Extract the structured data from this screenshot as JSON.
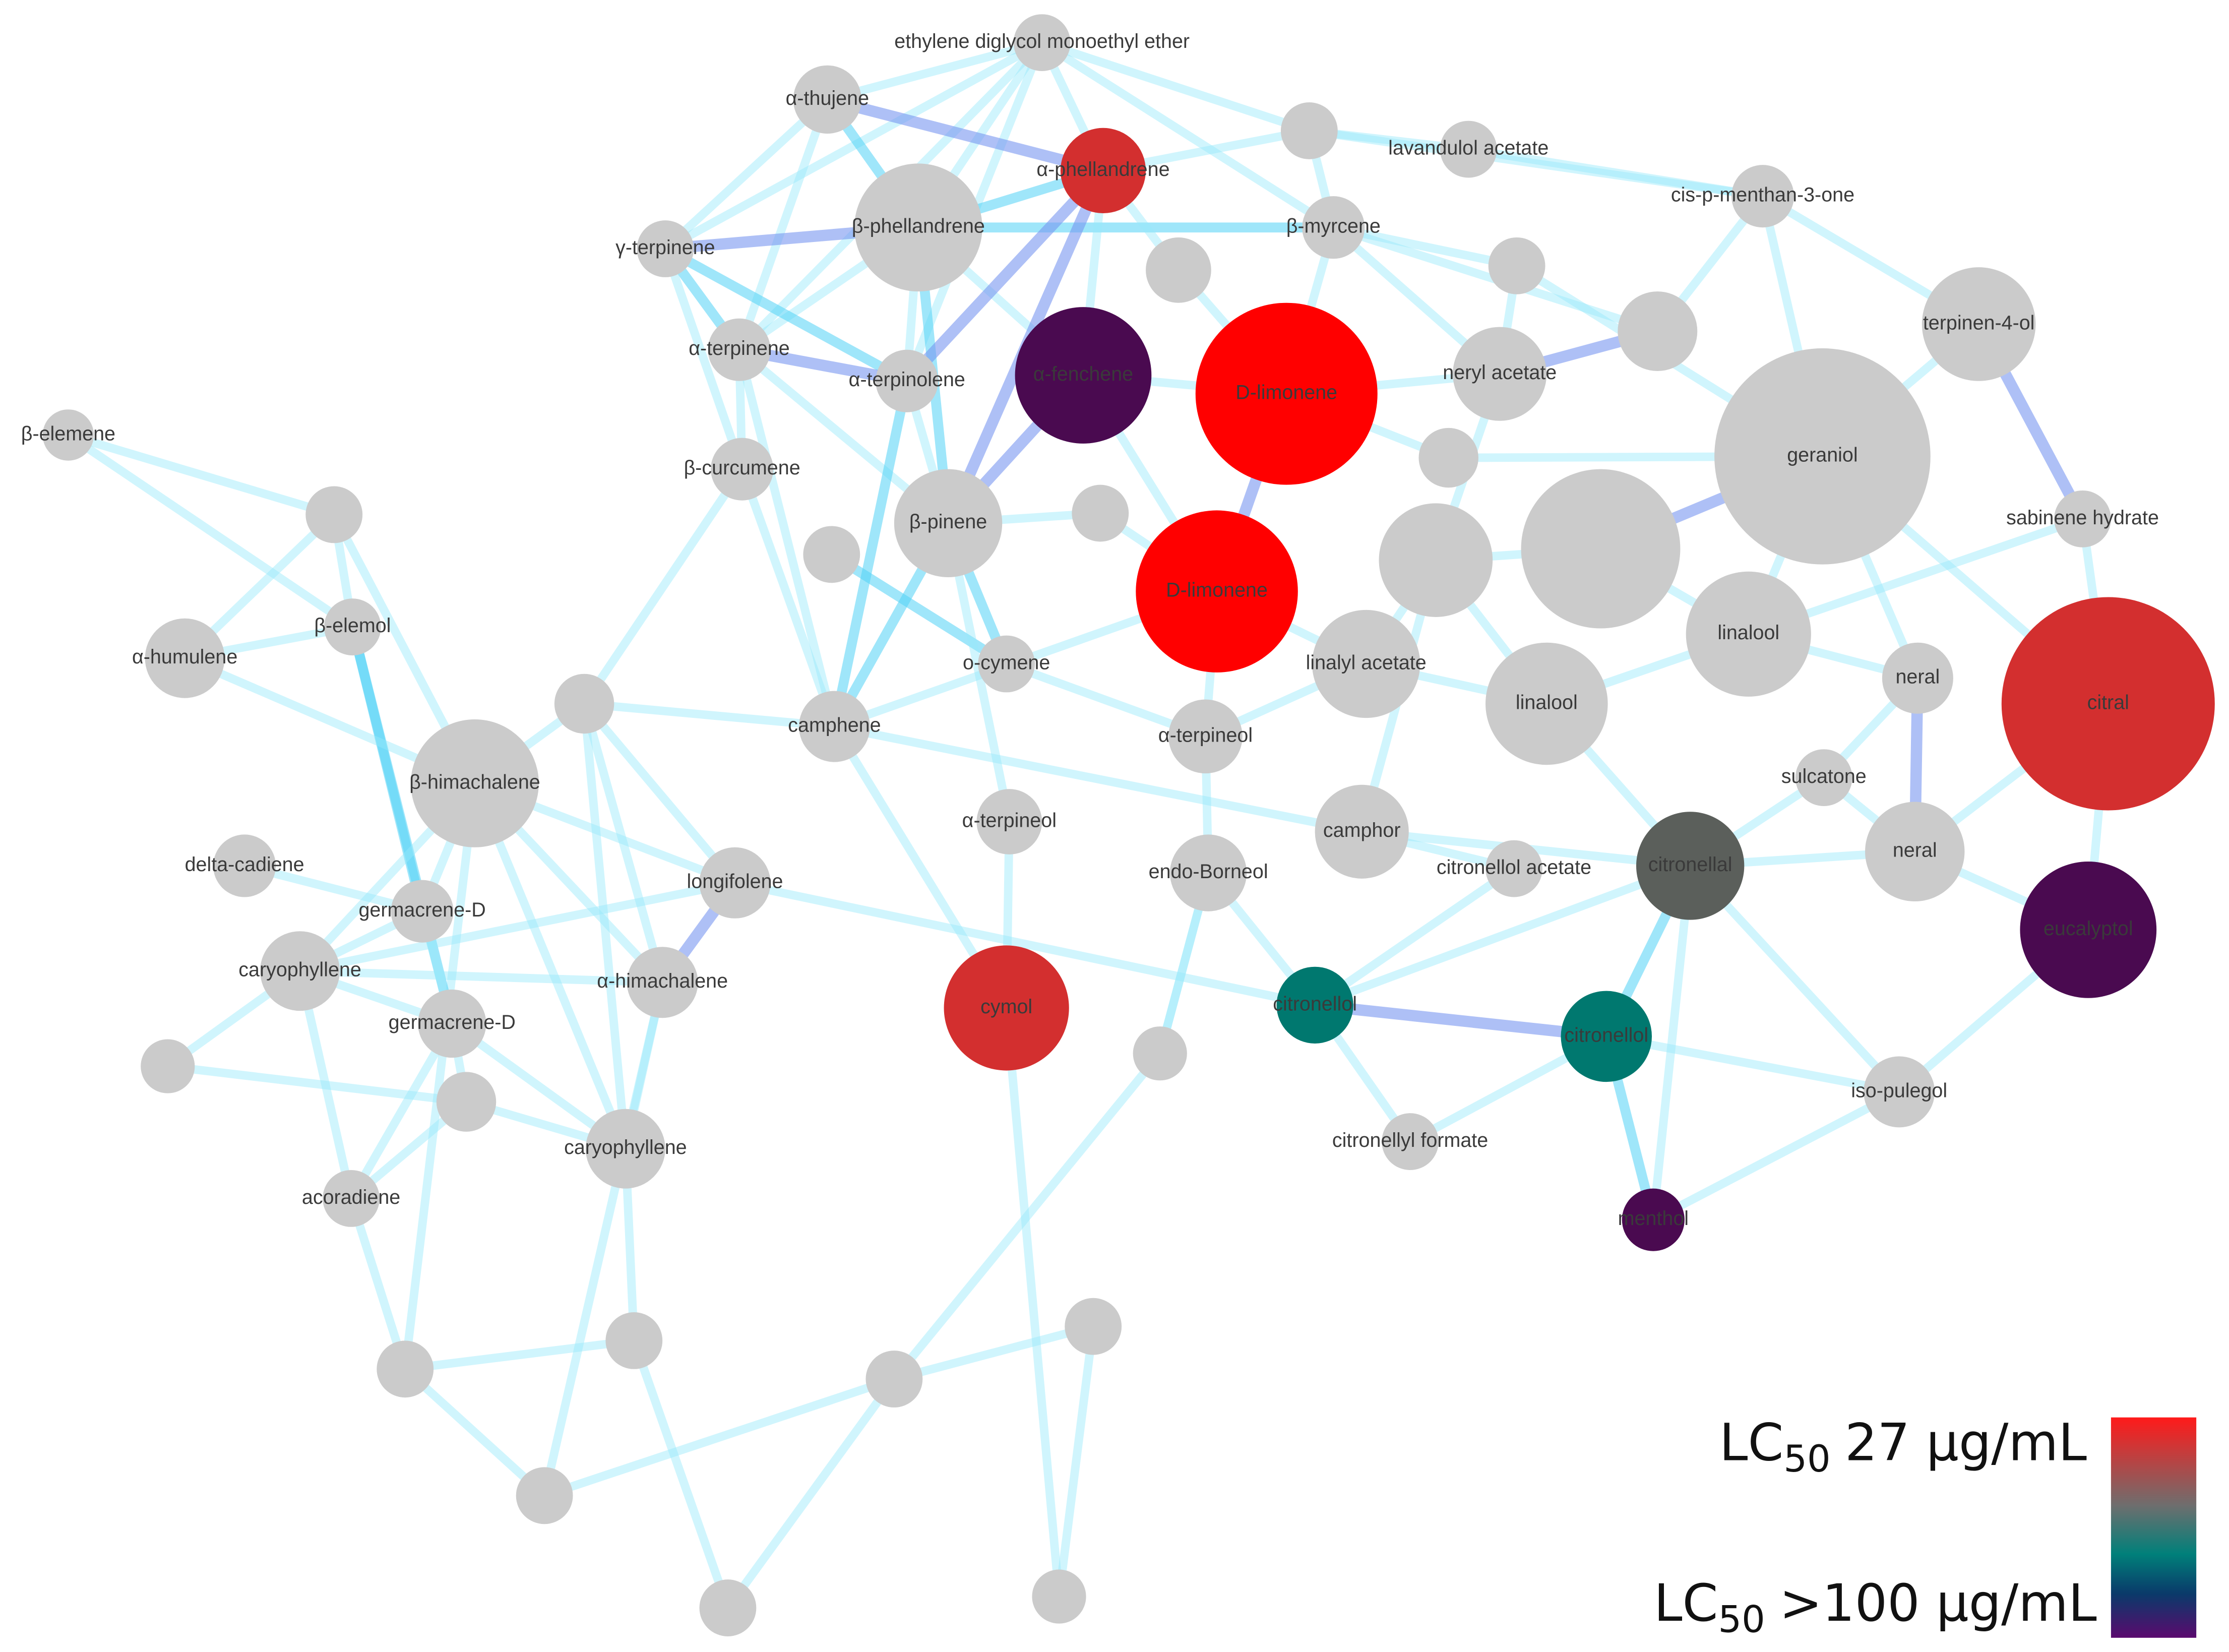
{
  "nodes": [
    {
      "label": "ethylene diglycol monoethyl ether"
    },
    {
      "label": "α-thujene"
    },
    {
      "label": "α-phellandrene"
    },
    {
      "label": "β-phellandrene"
    },
    {
      "label": "γ-terpinene"
    },
    {
      "label": "β-myrcene"
    },
    {
      "label": "lavandulol acetate"
    },
    {
      "label": "cis-p-menthan-3-one"
    },
    {
      "label": "α-terpinene"
    },
    {
      "label": "α-terpinolene"
    },
    {
      "label": "α-fenchene"
    },
    {
      "label": "D-limonene"
    },
    {
      "label": "neryl acetate"
    },
    {
      "label": "terpinen-4-ol"
    },
    {
      "label": "β-elemene"
    },
    {
      "label": "β-curcumene"
    },
    {
      "label": "geraniol"
    },
    {
      "label": "β-pinene"
    },
    {
      "label": "D-limonene"
    },
    {
      "label": "sabinene hydrate"
    },
    {
      "label": "α-humulene"
    },
    {
      "label": "β-elemol"
    },
    {
      "label": "o-cymene"
    },
    {
      "label": "linalyl acetate"
    },
    {
      "label": "linalool"
    },
    {
      "label": "linalool"
    },
    {
      "label": "neral"
    },
    {
      "label": "citral"
    },
    {
      "label": "camphene"
    },
    {
      "label": "β-himachalene"
    },
    {
      "label": "α-terpineol"
    },
    {
      "label": "sulcatone"
    },
    {
      "label": "α-terpineol"
    },
    {
      "label": "camphor"
    },
    {
      "label": "delta-cadiene"
    },
    {
      "label": "longifolene"
    },
    {
      "label": "endo-Borneol"
    },
    {
      "label": "citronellol acetate"
    },
    {
      "label": "citronellal"
    },
    {
      "label": "neral"
    },
    {
      "label": "germacrene-D"
    },
    {
      "label": "eucalyptol"
    },
    {
      "label": "caryophyllene"
    },
    {
      "label": "α-himachalene"
    },
    {
      "label": "cymol"
    },
    {
      "label": "citronellol"
    },
    {
      "label": "germacrene-D"
    },
    {
      "label": "citronellol"
    },
    {
      "label": "iso-pulegol"
    },
    {
      "label": "citronellyl formate"
    },
    {
      "label": "caryophyllene"
    },
    {
      "label": "acoradiene"
    },
    {
      "label": "menthol"
    }
  ],
  "legend": {
    "high": {
      "prefix": "LC",
      "subscript": "50",
      "value": "27 µg/mL"
    },
    "low": {
      "prefix": "LC",
      "subscript": "50",
      "value": ">100 µg/mL"
    }
  }
}
